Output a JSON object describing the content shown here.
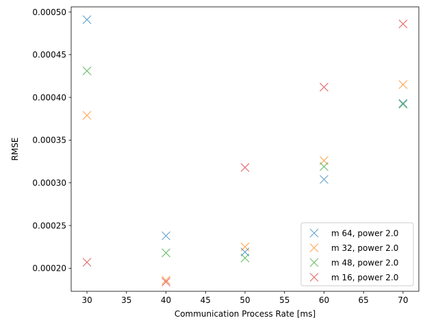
{
  "chart_data": {
    "type": "scatter",
    "title": "",
    "xlabel": "Communication Process Rate [ms]",
    "ylabel": "RMSE",
    "xlim": [
      28,
      72
    ],
    "ylim": [
      0.000173,
      0.000506
    ],
    "xticks": [
      30,
      35,
      40,
      45,
      50,
      55,
      60,
      65,
      70
    ],
    "xtick_labels": [
      "30",
      "35",
      "40",
      "45",
      "50",
      "55",
      "60",
      "65",
      "70"
    ],
    "yticks": [
      0.0002,
      0.00025,
      0.0003,
      0.00035,
      0.0004,
      0.00045,
      0.0005
    ],
    "ytick_labels": [
      "0.00020",
      "0.00025",
      "0.00030",
      "0.00035",
      "0.00040",
      "0.00045",
      "0.00050"
    ],
    "grid": false,
    "legend_position": "bottom-right",
    "marker": "x",
    "series": [
      {
        "name": "m 64, power 2.0",
        "color": "#1f77b4",
        "x": [
          30,
          40,
          50,
          60,
          70
        ],
        "y": [
          0.000491,
          0.000238,
          0.000219,
          0.000304,
          0.000393
        ]
      },
      {
        "name": "m 32, power 2.0",
        "color": "#ff7f0e",
        "x": [
          30,
          40,
          50,
          60,
          70
        ],
        "y": [
          0.000379,
          0.000186,
          0.000225,
          0.000326,
          0.000415
        ]
      },
      {
        "name": "m 48, power 2.0",
        "color": "#2ca02c",
        "x": [
          30,
          40,
          50,
          60,
          70
        ],
        "y": [
          0.000431,
          0.000218,
          0.000212,
          0.000319,
          0.000392
        ]
      },
      {
        "name": "m 16, power 2.0",
        "color": "#d62728",
        "x": [
          30,
          40,
          50,
          60,
          70
        ],
        "y": [
          0.000207,
          0.000184,
          0.000318,
          0.000412,
          0.000486
        ]
      }
    ]
  }
}
